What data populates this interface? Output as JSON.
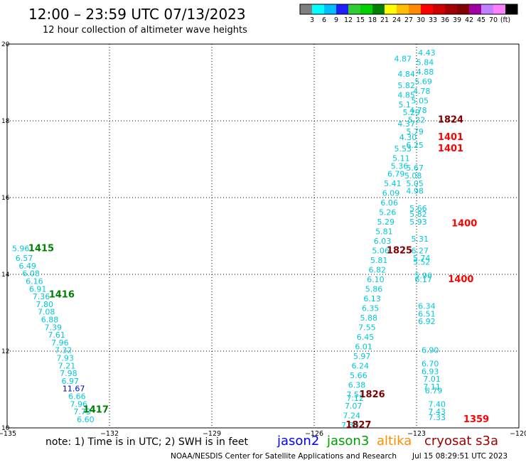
{
  "header": {
    "title": "12:00 – 23:59 UTC 07/13/2023",
    "subtitle": "12 hour collection of altimeter wave heights"
  },
  "colorbar": {
    "colors": [
      "#7f7f7f",
      "#00ffff",
      "#00bfff",
      "#1e1eff",
      "#32cd32",
      "#00d000",
      "#008000",
      "#ffff00",
      "#ffbf00",
      "#ff8c00",
      "#ff0000",
      "#d00000",
      "#a00000",
      "#800000",
      "#a000a0",
      "#c080ff",
      "#ff80ff",
      "#000000"
    ],
    "labels": [
      "3",
      "6",
      "9",
      "12",
      "15",
      "18",
      "21",
      "24",
      "27",
      "30",
      "33",
      "36",
      "39",
      "42",
      "45",
      "70",
      "(ft)"
    ]
  },
  "footer": {
    "note": "note:  1) Time is in UTC;  2) SWH is in feet",
    "missions": [
      {
        "name": "jason2",
        "color": "#0000ff"
      },
      {
        "name": "jason3",
        "color": "#00a000"
      },
      {
        "name": "altika",
        "color": "#ff8c00"
      },
      {
        "name": "cryosat s3a",
        "color": "#a00000"
      }
    ],
    "credit": "NOAA/NESDIS Center for Satellite Applications and Research",
    "timestamp": "Jul 15 08:29:51 UTC 2023"
  },
  "chart_data": {
    "type": "scatter",
    "xlim": [
      -135,
      -120
    ],
    "ylim": [
      10,
      20
    ],
    "xticks": [
      -135,
      -132,
      -129,
      -126,
      -123,
      -120
    ],
    "yticks": [
      10,
      12,
      14,
      16,
      18,
      20
    ],
    "xtick_labels": [
      "−135",
      "−132",
      "−129",
      "−126",
      "−123",
      "−120"
    ],
    "ytick_labels": [
      "10",
      "12",
      "14",
      "16",
      "18",
      "20"
    ],
    "grid": true,
    "series": [
      {
        "track": "west",
        "color": "#00c8d8",
        "points": [
          {
            "x": -134.6,
            "y": 14.6,
            "v": "5.96"
          },
          {
            "x": -134.5,
            "y": 14.35,
            "v": "6.57"
          },
          {
            "x": -134.4,
            "y": 14.15,
            "v": "6.49"
          },
          {
            "x": -134.3,
            "y": 13.95,
            "v": "6.08"
          },
          {
            "x": -134.2,
            "y": 13.75,
            "v": "6.16"
          },
          {
            "x": -134.1,
            "y": 13.55,
            "v": "6.91"
          },
          {
            "x": -134.0,
            "y": 13.35,
            "v": "7.36"
          },
          {
            "x": -133.9,
            "y": 13.15,
            "v": "7.80"
          },
          {
            "x": -133.85,
            "y": 12.95,
            "v": "7.08"
          },
          {
            "x": -133.75,
            "y": 12.75,
            "v": "6.88"
          },
          {
            "x": -133.65,
            "y": 12.55,
            "v": "7.39"
          },
          {
            "x": -133.55,
            "y": 12.35,
            "v": "7.61"
          },
          {
            "x": -133.45,
            "y": 12.15,
            "v": "7.96"
          },
          {
            "x": -133.35,
            "y": 11.95,
            "v": "7.32"
          },
          {
            "x": -133.3,
            "y": 11.75,
            "v": "7.93"
          },
          {
            "x": -133.25,
            "y": 11.55,
            "v": "7.21"
          },
          {
            "x": -133.2,
            "y": 11.35,
            "v": "7.98"
          },
          {
            "x": -133.15,
            "y": 11.15,
            "v": "6.97"
          },
          {
            "x": -133.05,
            "y": 10.95,
            "v": "11.67",
            "color": "#0000cc"
          },
          {
            "x": -132.95,
            "y": 10.75,
            "v": "6.66"
          },
          {
            "x": -132.9,
            "y": 10.55,
            "v": "7.96"
          },
          {
            "x": -132.8,
            "y": 10.35,
            "v": "7.73"
          },
          {
            "x": -132.7,
            "y": 10.15,
            "v": "6.60"
          }
        ]
      },
      {
        "track": "mid",
        "color": "#00c8d8",
        "points": [
          {
            "x": -123.4,
            "y": 19.55,
            "v": "4.87"
          },
          {
            "x": -123.3,
            "y": 19.15,
            "v": "4.84"
          },
          {
            "x": -123.3,
            "y": 18.85,
            "v": "5.82"
          },
          {
            "x": -123.3,
            "y": 18.6,
            "v": "4.85"
          },
          {
            "x": -123.35,
            "y": 18.35,
            "v": "5.1"
          },
          {
            "x": -123.15,
            "y": 18.15,
            "v": "5.29"
          },
          {
            "x": -123.3,
            "y": 17.85,
            "v": "4.37"
          },
          {
            "x": -123.25,
            "y": 17.5,
            "v": "4.30"
          },
          {
            "x": -123.4,
            "y": 17.2,
            "v": "5.53"
          },
          {
            "x": -123.45,
            "y": 16.95,
            "v": "5.11"
          },
          {
            "x": -123.5,
            "y": 16.75,
            "v": "5.36"
          },
          {
            "x": -123.6,
            "y": 16.55,
            "v": "6.79"
          },
          {
            "x": -123.7,
            "y": 16.3,
            "v": "5.41"
          },
          {
            "x": -123.75,
            "y": 16.05,
            "v": "6.09"
          },
          {
            "x": -123.8,
            "y": 15.8,
            "v": "6.06"
          },
          {
            "x": -123.85,
            "y": 15.55,
            "v": "5.26"
          },
          {
            "x": -123.9,
            "y": 15.3,
            "v": "5.29"
          },
          {
            "x": -123.95,
            "y": 15.05,
            "v": "5.81"
          },
          {
            "x": -124.0,
            "y": 14.8,
            "v": "6.03"
          },
          {
            "x": -124.05,
            "y": 14.55,
            "v": "5.06"
          },
          {
            "x": -124.1,
            "y": 14.3,
            "v": "5.81"
          },
          {
            "x": -124.15,
            "y": 14.05,
            "v": "6.82"
          },
          {
            "x": -124.2,
            "y": 13.8,
            "v": "6.10"
          },
          {
            "x": -124.25,
            "y": 13.55,
            "v": "5.86"
          },
          {
            "x": -124.3,
            "y": 13.3,
            "v": "6.13"
          },
          {
            "x": -124.35,
            "y": 13.05,
            "v": "6.35"
          },
          {
            "x": -124.4,
            "y": 12.8,
            "v": "5.88"
          },
          {
            "x": -124.45,
            "y": 12.55,
            "v": "7.55"
          },
          {
            "x": -124.5,
            "y": 12.3,
            "v": "6.45"
          },
          {
            "x": -124.55,
            "y": 12.05,
            "v": "6.01"
          },
          {
            "x": -124.6,
            "y": 11.8,
            "v": "5.97"
          },
          {
            "x": -124.65,
            "y": 11.55,
            "v": "6.24"
          },
          {
            "x": -124.7,
            "y": 11.3,
            "v": "5.66"
          },
          {
            "x": -124.75,
            "y": 11.05,
            "v": "6.38"
          },
          {
            "x": -124.8,
            "y": 10.8,
            "v": "7.53"
          },
          {
            "x": -124.8,
            "y": 10.7,
            "v": "7.12"
          },
          {
            "x": -124.85,
            "y": 10.5,
            "v": "7.07"
          },
          {
            "x": -124.9,
            "y": 10.25,
            "v": "7.24"
          },
          {
            "x": -124.95,
            "y": 10.0,
            "v": "7.30"
          }
        ]
      },
      {
        "track": "east",
        "color": "#00c8d8",
        "points": [
          {
            "x": -122.7,
            "y": 19.7,
            "v": "4.43"
          },
          {
            "x": -122.75,
            "y": 19.45,
            "v": "5.84"
          },
          {
            "x": -122.75,
            "y": 19.2,
            "v": "4.88"
          },
          {
            "x": -122.8,
            "y": 18.95,
            "v": "5.69"
          },
          {
            "x": -122.85,
            "y": 18.7,
            "v": "4.78"
          },
          {
            "x": -122.9,
            "y": 18.45,
            "v": "5.05"
          },
          {
            "x": -122.95,
            "y": 18.2,
            "v": "4.78"
          },
          {
            "x": -123.0,
            "y": 17.95,
            "v": "5.22"
          },
          {
            "x": -123.05,
            "y": 17.65,
            "v": "5.79"
          },
          {
            "x": -123.05,
            "y": 17.3,
            "v": "6.25"
          },
          {
            "x": -123.05,
            "y": 16.7,
            "v": "5.67"
          },
          {
            "x": -123.1,
            "y": 16.5,
            "v": "5.08"
          },
          {
            "x": -123.05,
            "y": 16.3,
            "v": "5.05"
          },
          {
            "x": -123.05,
            "y": 16.1,
            "v": "4.98"
          },
          {
            "x": -122.95,
            "y": 15.65,
            "v": "5.66"
          },
          {
            "x": -122.95,
            "y": 15.5,
            "v": "5.82"
          },
          {
            "x": -122.95,
            "y": 15.3,
            "v": "5.93"
          },
          {
            "x": -122.9,
            "y": 14.85,
            "v": "5.31"
          },
          {
            "x": -122.9,
            "y": 14.55,
            "v": "6.27"
          },
          {
            "x": -122.85,
            "y": 14.35,
            "v": "5.74"
          },
          {
            "x": -122.85,
            "y": 14.25,
            "v": "5.52"
          },
          {
            "x": -122.8,
            "y": 13.9,
            "v": "5.96"
          },
          {
            "x": -122.8,
            "y": 13.8,
            "v": "6.17"
          },
          {
            "x": -122.7,
            "y": 13.1,
            "v": "6.34"
          },
          {
            "x": -122.7,
            "y": 12.9,
            "v": "6.51"
          },
          {
            "x": -122.7,
            "y": 12.7,
            "v": "6.92"
          },
          {
            "x": -122.6,
            "y": 11.95,
            "v": "6.90"
          },
          {
            "x": -122.6,
            "y": 11.6,
            "v": "6.70"
          },
          {
            "x": -122.6,
            "y": 11.4,
            "v": "6.93"
          },
          {
            "x": -122.55,
            "y": 11.2,
            "v": "7.01"
          },
          {
            "x": -122.55,
            "y": 11.0,
            "v": "7.11"
          },
          {
            "x": -122.5,
            "y": 10.9,
            "v": "6.79"
          },
          {
            "x": -122.4,
            "y": 10.55,
            "v": "7.40"
          },
          {
            "x": -122.4,
            "y": 10.35,
            "v": "7.43"
          },
          {
            "x": -122.4,
            "y": 10.2,
            "v": "7.33"
          }
        ]
      }
    ],
    "time_labels": [
      {
        "x": -134.0,
        "y": 14.6,
        "v": "1415",
        "color": "#008000"
      },
      {
        "x": -133.4,
        "y": 13.4,
        "v": "1416",
        "color": "#008000"
      },
      {
        "x": -132.4,
        "y": 10.4,
        "v": "1417",
        "color": "#008000"
      },
      {
        "x": -122.0,
        "y": 17.95,
        "v": "1824",
        "color": "#800000"
      },
      {
        "x": -122.0,
        "y": 17.5,
        "v": "1401",
        "color": "#ff0000"
      },
      {
        "x": -122.0,
        "y": 17.2,
        "v": "1401",
        "color": "#ff0000"
      },
      {
        "x": -121.6,
        "y": 15.25,
        "v": "1400",
        "color": "#ff0000"
      },
      {
        "x": -123.5,
        "y": 14.55,
        "v": "1825",
        "color": "#800000"
      },
      {
        "x": -121.7,
        "y": 13.8,
        "v": "1400",
        "color": "#ff0000"
      },
      {
        "x": -124.3,
        "y": 10.8,
        "v": "1826",
        "color": "#800000"
      },
      {
        "x": -124.7,
        "y": 10.0,
        "v": "1827",
        "color": "#800000"
      },
      {
        "x": -121.25,
        "y": 10.15,
        "v": "1359",
        "color": "#ff0000"
      }
    ]
  }
}
